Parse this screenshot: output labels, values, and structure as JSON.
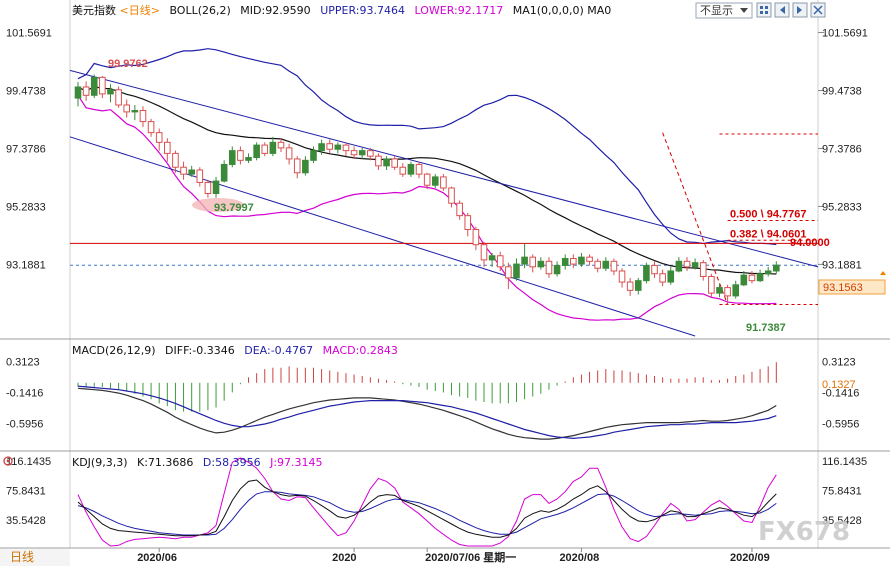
{
  "colors": {
    "bull": "#3a8a3a",
    "bear": "#d95050",
    "upper": "#1f1fa8",
    "mid": "#111111",
    "lower": "#d400d4",
    "channel": "#1f1fa8",
    "fib": "#d40000",
    "macd_line": "#333333",
    "signal_line": "#1f1fa8",
    "hist_pos": "#d04040",
    "hist_neg": "#3d9b3d",
    "k_line": "#111111",
    "d_line": "#1f1fa8",
    "j_line": "#d400d4",
    "accent_orange": "#f08000"
  },
  "toolbar": {
    "symbol": "美元指数",
    "period_tag": "<日线>",
    "dropdown_label": "不显示",
    "bottom_period": "日线",
    "dropdown_icon": "chevron-down-icon",
    "nav_icons": [
      "grid-icon",
      "back-icon",
      "forward-icon",
      "close-icon"
    ]
  },
  "chart_data": {
    "type": "candlestick",
    "symbol": "美元指数",
    "period": "日线",
    "main_axis": {
      "ticks": [
        "101.5691",
        "99.4738",
        "97.3786",
        "95.2833",
        "93.1881"
      ],
      "ylim": [
        90.6,
        102.6
      ]
    },
    "indicators_main": {
      "boll": "BOLL(26,2)",
      "mid": "MID:92.9590",
      "upper": "UPPER:93.7464",
      "lower": "LOWER:92.1717",
      "ma": "MA1(0,0,0,0) MA0"
    },
    "last_price": "93.1563",
    "annotations": {
      "high": "99.9762",
      "low_mid": "93.7997",
      "low": "91.7387"
    },
    "fibonacci": [
      {
        "label": "0.500 \\ 94.7767",
        "value": 94.7767
      },
      {
        "label": "0.382 \\ 94.0601",
        "value": 94.0601
      },
      {
        "label": "94.0000",
        "value": 94.0
      }
    ],
    "resistance_level": 93.95,
    "x_labels": [
      "2020/06",
      "2020",
      "2020/07/06 星期一",
      "2020/08",
      "2020/09"
    ],
    "candles": [
      [
        99.2,
        99.6,
        99.78,
        98.9
      ],
      [
        99.6,
        99.3,
        99.8,
        99.1
      ],
      [
        99.3,
        99.95,
        100.05,
        99.2
      ],
      [
        99.95,
        99.35,
        100.0,
        99.2
      ],
      [
        99.35,
        99.5,
        99.7,
        99.05
      ],
      [
        99.5,
        98.95,
        99.62,
        98.85
      ],
      [
        98.95,
        98.7,
        99.15,
        98.5
      ],
      [
        98.7,
        98.75,
        98.95,
        98.4
      ],
      [
        98.75,
        98.35,
        98.9,
        98.15
      ],
      [
        98.35,
        97.95,
        98.45,
        97.8
      ],
      [
        97.95,
        97.6,
        98.1,
        97.3
      ],
      [
        97.6,
        97.2,
        97.75,
        96.9
      ],
      [
        97.2,
        96.7,
        97.3,
        96.5
      ],
      [
        96.7,
        96.45,
        96.9,
        96.25
      ],
      [
        96.45,
        96.6,
        96.75,
        96.35
      ],
      [
        96.6,
        96.15,
        96.7,
        96.0
      ],
      [
        96.15,
        95.75,
        96.25,
        95.6
      ],
      [
        95.75,
        96.2,
        96.35,
        95.6
      ],
      [
        96.2,
        96.8,
        96.95,
        96.15
      ],
      [
        96.8,
        97.3,
        97.45,
        96.7
      ],
      [
        97.3,
        96.95,
        97.45,
        96.8
      ],
      [
        96.95,
        97.05,
        97.2,
        96.85
      ],
      [
        97.05,
        97.5,
        97.6,
        96.95
      ],
      [
        97.5,
        97.2,
        97.6,
        97.1
      ],
      [
        97.2,
        97.6,
        97.8,
        97.1
      ],
      [
        97.6,
        97.4,
        97.75,
        97.25
      ],
      [
        97.4,
        97.0,
        97.55,
        96.8
      ],
      [
        97.0,
        96.5,
        97.1,
        96.3
      ],
      [
        96.5,
        96.95,
        97.1,
        96.4
      ],
      [
        96.95,
        97.3,
        97.45,
        96.85
      ],
      [
        97.3,
        97.55,
        97.7,
        97.15
      ],
      [
        97.55,
        97.35,
        97.7,
        97.2
      ],
      [
        97.35,
        97.5,
        97.6,
        97.2
      ],
      [
        97.5,
        97.3,
        97.6,
        97.1
      ],
      [
        97.3,
        97.15,
        97.45,
        97.0
      ],
      [
        97.15,
        97.3,
        97.4,
        97.0
      ],
      [
        97.3,
        97.1,
        97.4,
        96.95
      ],
      [
        97.1,
        96.75,
        97.2,
        96.6
      ],
      [
        96.75,
        97.0,
        97.1,
        96.6
      ],
      [
        97.0,
        96.7,
        97.1,
        96.6
      ],
      [
        96.7,
        96.45,
        96.85,
        96.35
      ],
      [
        96.45,
        96.8,
        96.9,
        96.35
      ],
      [
        96.8,
        96.45,
        96.9,
        96.3
      ],
      [
        96.45,
        96.05,
        96.5,
        95.9
      ],
      [
        96.05,
        96.35,
        96.45,
        95.95
      ],
      [
        96.35,
        95.95,
        96.45,
        95.85
      ],
      [
        95.95,
        95.4,
        96.0,
        95.25
      ],
      [
        95.4,
        94.95,
        95.5,
        94.8
      ],
      [
        94.95,
        94.45,
        95.05,
        94.2
      ],
      [
        94.45,
        93.9,
        94.55,
        93.7
      ],
      [
        93.9,
        93.35,
        94.0,
        93.1
      ],
      [
        93.35,
        93.5,
        93.6,
        93.1
      ],
      [
        93.5,
        93.1,
        93.65,
        92.95
      ],
      [
        93.1,
        92.7,
        93.25,
        92.3
      ],
      [
        92.7,
        93.2,
        93.4,
        92.6
      ],
      [
        93.2,
        93.45,
        93.95,
        93.05
      ],
      [
        93.45,
        93.1,
        93.55,
        92.9
      ],
      [
        93.1,
        93.3,
        93.45,
        93.0
      ],
      [
        93.3,
        92.85,
        93.45,
        92.7
      ],
      [
        92.85,
        93.15,
        93.3,
        92.75
      ],
      [
        93.15,
        93.4,
        93.55,
        93.0
      ],
      [
        93.4,
        93.2,
        93.55,
        93.05
      ],
      [
        93.2,
        93.45,
        93.6,
        93.1
      ],
      [
        93.45,
        93.3,
        93.55,
        93.15
      ],
      [
        93.3,
        93.05,
        93.4,
        92.9
      ],
      [
        93.05,
        93.3,
        93.45,
        92.95
      ],
      [
        93.3,
        92.95,
        93.4,
        92.8
      ],
      [
        92.95,
        92.55,
        93.05,
        92.35
      ],
      [
        92.55,
        92.25,
        92.7,
        92.05
      ],
      [
        92.25,
        92.6,
        92.7,
        92.1
      ],
      [
        92.6,
        93.15,
        93.25,
        92.5
      ],
      [
        93.15,
        92.85,
        93.3,
        92.7
      ],
      [
        92.85,
        92.55,
        93.0,
        92.4
      ],
      [
        92.55,
        92.95,
        93.1,
        92.45
      ],
      [
        92.95,
        93.3,
        93.45,
        92.9
      ],
      [
        93.3,
        93.1,
        93.45,
        92.95
      ],
      [
        93.1,
        93.25,
        93.4,
        93.0
      ],
      [
        93.25,
        92.75,
        93.35,
        92.6
      ],
      [
        92.75,
        92.15,
        92.85,
        92.0
      ],
      [
        92.15,
        92.35,
        92.5,
        92.0
      ],
      [
        92.35,
        92.05,
        92.45,
        91.74
      ],
      [
        92.05,
        92.45,
        92.6,
        91.95
      ],
      [
        92.45,
        92.8,
        92.95,
        92.4
      ],
      [
        92.8,
        92.6,
        92.95,
        92.5
      ],
      [
        92.6,
        92.85,
        93.0,
        92.55
      ],
      [
        92.85,
        92.95,
        93.1,
        92.75
      ],
      [
        92.95,
        93.16,
        93.3,
        92.85
      ]
    ],
    "macd": {
      "label": "MACD(26,12,9)",
      "diff": "DIFF:-0.3346",
      "dea": "DEA:-0.4767",
      "macd": "MACD:0.2843",
      "ticks": [
        "0.3123",
        "-0.1416",
        "-0.5956"
      ],
      "ylim": [
        -0.95,
        0.58
      ],
      "current": "0.1327",
      "diff_series": [
        -0.08,
        -0.09,
        -0.1,
        -0.11,
        -0.13,
        -0.15,
        -0.18,
        -0.22,
        -0.26,
        -0.31,
        -0.37,
        -0.43,
        -0.5,
        -0.56,
        -0.61,
        -0.66,
        -0.7,
        -0.73,
        -0.72,
        -0.69,
        -0.65,
        -0.6,
        -0.55,
        -0.5,
        -0.46,
        -0.42,
        -0.38,
        -0.35,
        -0.32,
        -0.29,
        -0.27,
        -0.25,
        -0.24,
        -0.23,
        -0.22,
        -0.22,
        -0.22,
        -0.23,
        -0.24,
        -0.25,
        -0.27,
        -0.29,
        -0.31,
        -0.34,
        -0.37,
        -0.4,
        -0.44,
        -0.48,
        -0.52,
        -0.57,
        -0.62,
        -0.67,
        -0.71,
        -0.75,
        -0.78,
        -0.8,
        -0.81,
        -0.82,
        -0.82,
        -0.81,
        -0.79,
        -0.77,
        -0.74,
        -0.71,
        -0.68,
        -0.65,
        -0.63,
        -0.61,
        -0.6,
        -0.59,
        -0.58,
        -0.58,
        -0.58,
        -0.58,
        -0.58,
        -0.57,
        -0.56,
        -0.55,
        -0.56,
        -0.56,
        -0.55,
        -0.53,
        -0.51,
        -0.48,
        -0.44,
        -0.4,
        -0.33
      ],
      "dea_series": [
        -0.05,
        -0.06,
        -0.07,
        -0.08,
        -0.09,
        -0.1,
        -0.12,
        -0.14,
        -0.16,
        -0.19,
        -0.22,
        -0.26,
        -0.3,
        -0.35,
        -0.4,
        -0.45,
        -0.5,
        -0.55,
        -0.59,
        -0.62,
        -0.64,
        -0.64,
        -0.62,
        -0.6,
        -0.57,
        -0.53,
        -0.5,
        -0.46,
        -0.43,
        -0.4,
        -0.37,
        -0.34,
        -0.32,
        -0.3,
        -0.28,
        -0.27,
        -0.26,
        -0.26,
        -0.26,
        -0.26,
        -0.26,
        -0.27,
        -0.28,
        -0.29,
        -0.31,
        -0.33,
        -0.35,
        -0.38,
        -0.41,
        -0.44,
        -0.48,
        -0.52,
        -0.56,
        -0.6,
        -0.64,
        -0.68,
        -0.71,
        -0.74,
        -0.77,
        -0.79,
        -0.8,
        -0.81,
        -0.8,
        -0.79,
        -0.77,
        -0.75,
        -0.72,
        -0.7,
        -0.68,
        -0.66,
        -0.64,
        -0.63,
        -0.62,
        -0.61,
        -0.61,
        -0.6,
        -0.6,
        -0.59,
        -0.58,
        -0.58,
        -0.58,
        -0.58,
        -0.57,
        -0.56,
        -0.54,
        -0.52,
        -0.48
      ]
    },
    "kdj": {
      "label": "KDJ(9,3,3)",
      "k": "K:71.3686",
      "d": "D:58.3956",
      "j": "J:97.3145",
      "ticks": [
        "116.1435",
        "75.8431",
        "35.5428"
      ],
      "ylim": [
        0,
        124
      ],
      "k_series": [
        60,
        50,
        40,
        30,
        24,
        21,
        20,
        19,
        18,
        17,
        16,
        15,
        14,
        14,
        14,
        15,
        16,
        20,
        40,
        62,
        78,
        88,
        90,
        80,
        74,
        70,
        68,
        69,
        68,
        62,
        55,
        48,
        40,
        38,
        42,
        50,
        60,
        68,
        70,
        69,
        62,
        58,
        54,
        48,
        42,
        36,
        30,
        24,
        19,
        16,
        14,
        12,
        12,
        15,
        24,
        38,
        44,
        48,
        46,
        50,
        56,
        64,
        70,
        78,
        82,
        74,
        62,
        50,
        40,
        34,
        33,
        36,
        42,
        48,
        46,
        40,
        40,
        44,
        48,
        52,
        50,
        46,
        42,
        40,
        48,
        60,
        71
      ],
      "d_series": [
        55,
        52,
        47,
        41,
        36,
        31,
        27,
        24,
        22,
        20,
        18,
        17,
        16,
        15,
        15,
        15,
        15,
        16,
        24,
        36,
        50,
        62,
        71,
        74,
        74,
        73,
        71,
        70,
        69,
        67,
        63,
        59,
        53,
        48,
        46,
        47,
        51,
        56,
        61,
        64,
        63,
        61,
        59,
        55,
        51,
        46,
        41,
        35,
        30,
        25,
        21,
        18,
        16,
        16,
        19,
        25,
        31,
        37,
        40,
        43,
        47,
        52,
        58,
        64,
        70,
        71,
        68,
        62,
        55,
        48,
        43,
        40,
        41,
        43,
        44,
        43,
        42,
        43,
        44,
        47,
        48,
        47,
        46,
        44,
        45,
        50,
        58
      ],
      "j_series": [
        70,
        46,
        26,
        8,
        0,
        1,
        6,
        9,
        10,
        11,
        12,
        11,
        10,
        12,
        12,
        15,
        18,
        28,
        72,
        114,
        120,
        114,
        106,
        92,
        74,
        64,
        62,
        67,
        66,
        52,
        39,
        26,
        14,
        18,
        34,
        56,
        78,
        92,
        88,
        79,
        60,
        52,
        44,
        34,
        24,
        16,
        8,
        2,
        0,
        0,
        0,
        0,
        4,
        13,
        34,
        64,
        70,
        70,
        58,
        64,
        74,
        88,
        94,
        106,
        106,
        80,
        50,
        26,
        10,
        6,
        13,
        28,
        44,
        58,
        50,
        34,
        36,
        46,
        56,
        62,
        54,
        44,
        34,
        32,
        54,
        80,
        97
      ]
    }
  },
  "watermark": "FX678"
}
